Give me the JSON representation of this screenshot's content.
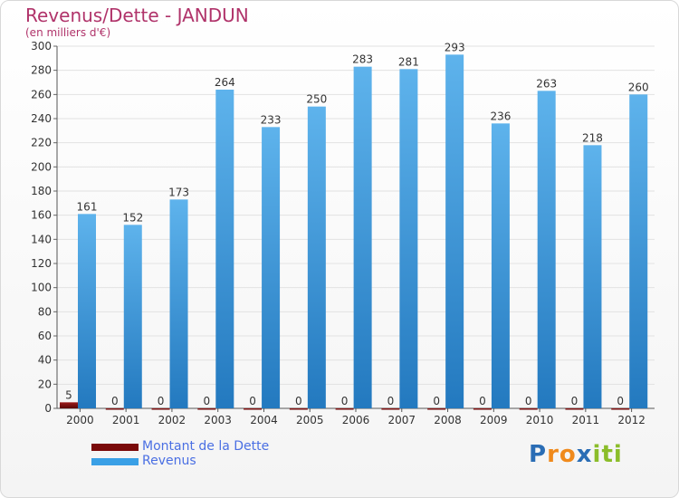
{
  "colors": {
    "debt": "#7a0a0a",
    "revenue": "#3aa0e6",
    "title": "#b0336a"
  },
  "chart_data": {
    "type": "bar",
    "title": "Revenus/Dette - JANDUN",
    "subtitle": "(en milliers d'€)",
    "xlabel": "",
    "ylabel": "",
    "ylim": [
      0,
      300
    ],
    "yticks": [
      0,
      20,
      40,
      60,
      80,
      100,
      120,
      140,
      160,
      180,
      200,
      220,
      240,
      260,
      280,
      300
    ],
    "grid": true,
    "categories": [
      "2000",
      "2001",
      "2002",
      "2003",
      "2004",
      "2005",
      "2006",
      "2007",
      "2008",
      "2009",
      "2010",
      "2011",
      "2012"
    ],
    "series": [
      {
        "name": "Montant de la Dette",
        "color": "#7a0a0a",
        "values": [
          5,
          0,
          0,
          0,
          0,
          0,
          0,
          0,
          0,
          0,
          0,
          0,
          0
        ]
      },
      {
        "name": "Revenus",
        "color": "#3aa0e6",
        "values": [
          161,
          152,
          173,
          264,
          233,
          250,
          283,
          281,
          293,
          236,
          263,
          218,
          260
        ]
      }
    ],
    "legend_position": "bottom-left"
  },
  "logo": {
    "letters": [
      "P",
      "r",
      "o",
      "x",
      "i",
      "t",
      "i"
    ],
    "colors": [
      "#2a6db5",
      "#f08a1c",
      "#f08a1c",
      "#2a6db5",
      "#8bbd2a",
      "#8bbd2a",
      "#8bbd2a"
    ]
  }
}
